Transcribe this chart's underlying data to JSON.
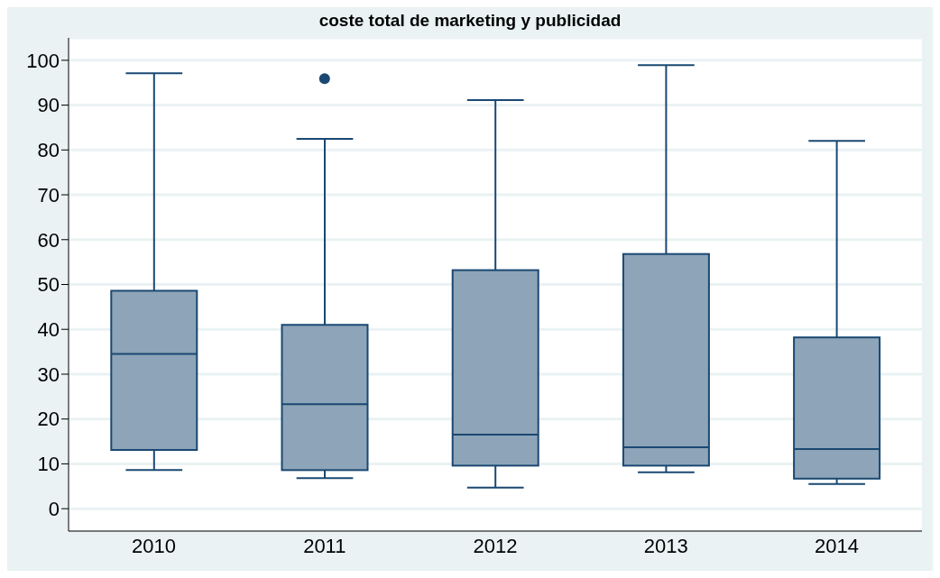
{
  "chart_data": {
    "type": "box",
    "title": "coste total de marketing y publicidad",
    "categories": [
      "2010",
      "2011",
      "2012",
      "2013",
      "2014"
    ],
    "boxes": [
      {
        "low": 8.6,
        "q1": 13.1,
        "median": 34.5,
        "q3": 48.6,
        "high": 97.1
      },
      {
        "low": 6.8,
        "q1": 8.6,
        "median": 23.3,
        "q3": 41.0,
        "high": 82.5,
        "outliers": [
          95.9
        ]
      },
      {
        "low": 4.7,
        "q1": 9.6,
        "median": 16.5,
        "q3": 53.2,
        "high": 91.1
      },
      {
        "low": 8.1,
        "q1": 9.6,
        "median": 13.7,
        "q3": 56.8,
        "high": 98.9
      },
      {
        "low": 5.5,
        "q1": 6.7,
        "median": 13.3,
        "q3": 38.2,
        "high": 82.0
      }
    ],
    "color": "#8ea4b8",
    "ylim": [
      -5,
      105
    ],
    "yticks": [
      0,
      10,
      20,
      30,
      40,
      50,
      60,
      70,
      80,
      90,
      100
    ],
    "grid": "y"
  }
}
